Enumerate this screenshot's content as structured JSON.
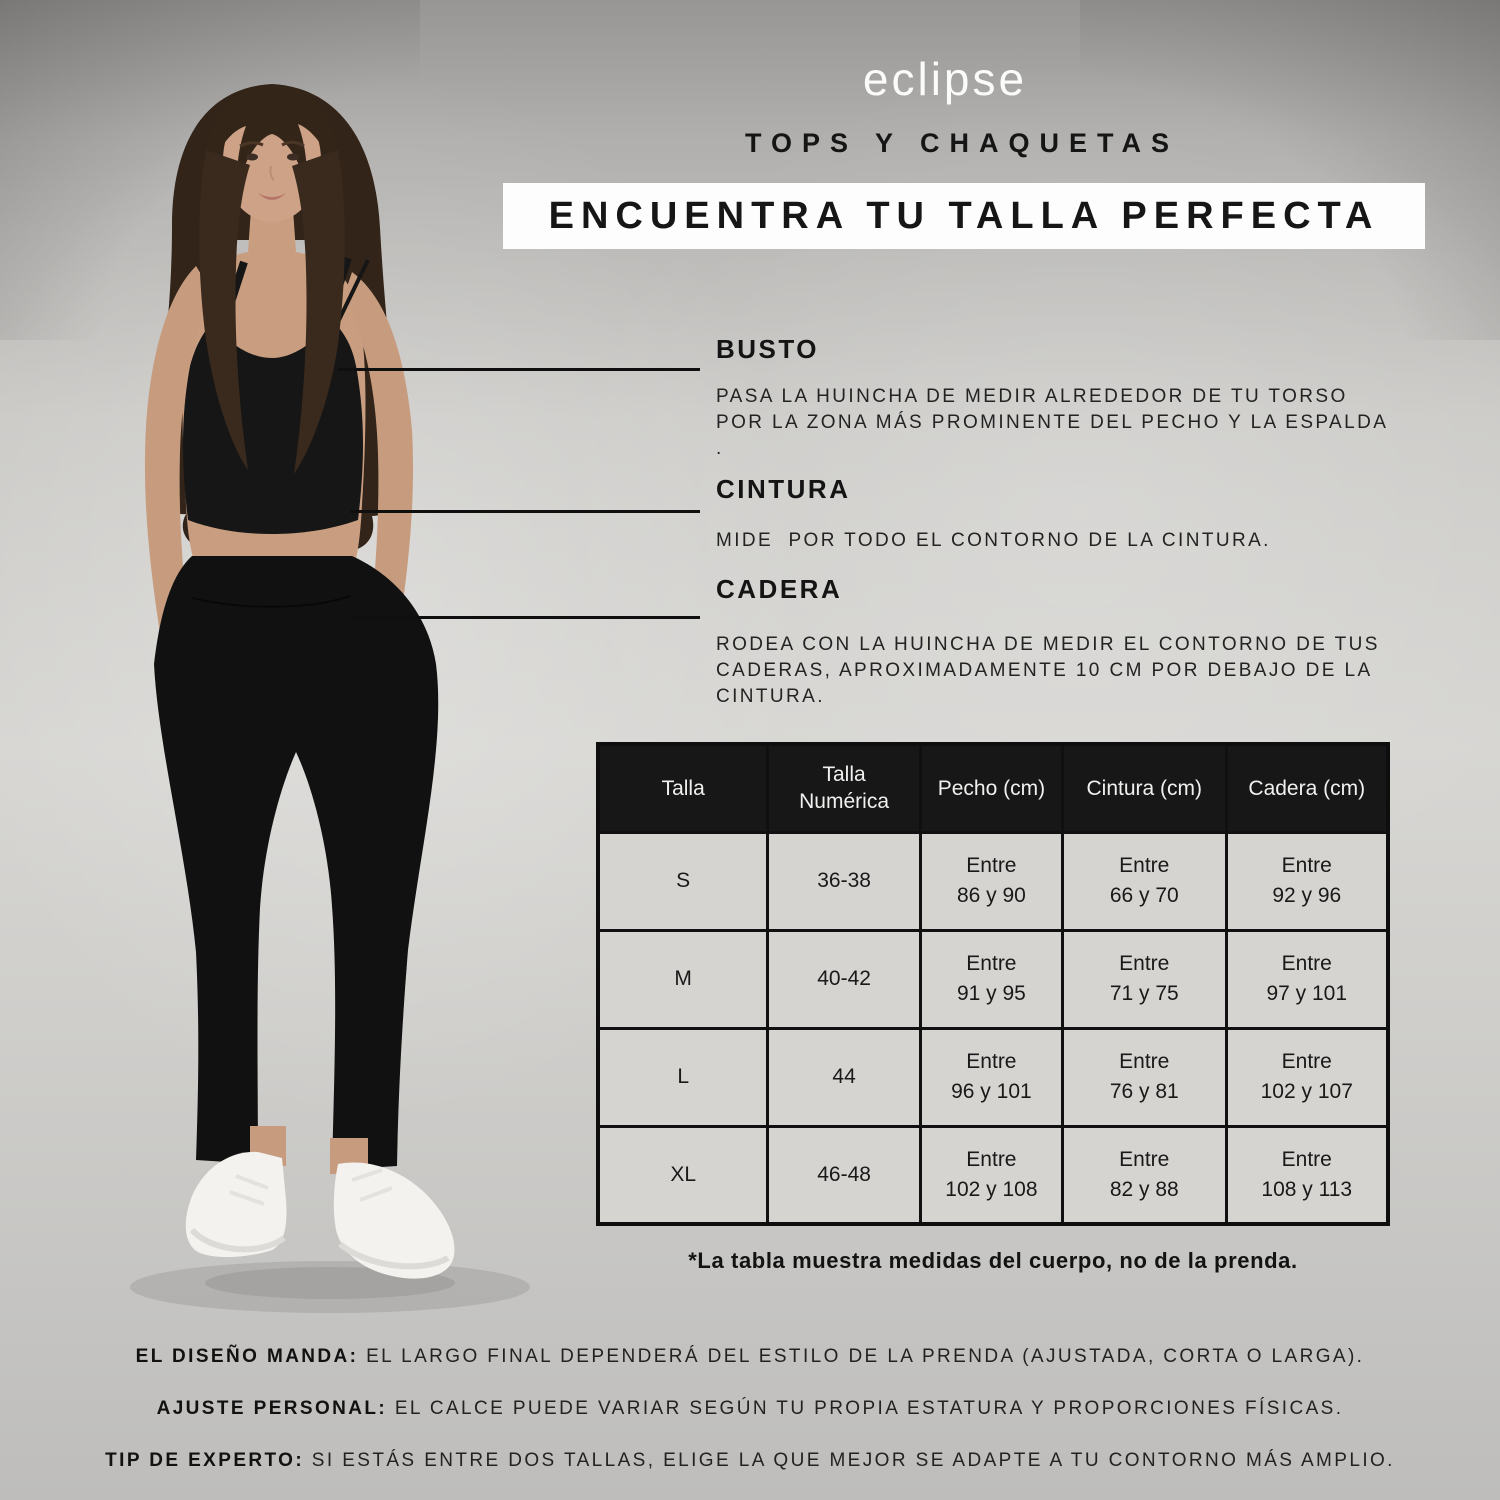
{
  "brand": {
    "logo_text": "eclipse"
  },
  "header": {
    "category": "TOPS Y CHAQUETAS",
    "title": "ENCUENTRA TU TALLA PERFECTA"
  },
  "measurements": [
    {
      "name": "BUSTO",
      "description": "PASA LA HUINCHA DE MEDIR ALREDEDOR DE TU TORSO\nPOR LA ZONA MÁS PROMINENTE DEL PECHO Y LA ESPALDA\n."
    },
    {
      "name": "CINTURA",
      "description": "MIDE  POR TODO EL CONTORNO DE LA CINTURA."
    },
    {
      "name": "CADERA",
      "description": "RODEA CON LA HUINCHA DE MEDIR EL CONTORNO DE TUS\nCADERAS, APROXIMADAMENTE 10 CM POR DEBAJO DE LA\nCINTURA."
    }
  ],
  "size_table": {
    "headers": [
      "Talla",
      "Talla\nNumérica",
      "Pecho (cm)",
      "Cintura (cm)",
      "Cadera (cm)"
    ],
    "rows": [
      [
        "S",
        "36-38",
        "Entre\n86 y 90",
        "Entre\n66 y 70",
        "Entre\n92 y 96"
      ],
      [
        "M",
        "40-42",
        "Entre\n91 y 95",
        "Entre\n71 y 75",
        "Entre\n97 y 101"
      ],
      [
        "L",
        "44",
        "Entre\n96 y 101",
        "Entre\n76 y 81",
        "Entre\n102 y 107"
      ],
      [
        "XL",
        "46-48",
        "Entre\n102 y 108",
        "Entre\n82 y 88",
        "Entre\n108 y 113"
      ]
    ],
    "footnote": "*La tabla muestra medidas del cuerpo, no de la prenda."
  },
  "footer_notes": [
    {
      "label": "EL DISEÑO MANDA:",
      "text": "EL LARGO FINAL DEPENDERÁ DEL ESTILO DE LA PRENDA (AJUSTADA, CORTA O LARGA)."
    },
    {
      "label": "AJUSTE PERSONAL:",
      "text": "EL CALCE PUEDE VARIAR SEGÚN TU PROPIA ESTATURA Y PROPORCIONES FÍSICAS."
    },
    {
      "label": "TIP DE EXPERTO:",
      "text": "SI ESTÁS ENTRE DOS TALLAS, ELIGE LA QUE MEJOR SE ADAPTE A TU CONTORNO MÁS AMPLIO."
    }
  ],
  "colors": {
    "text_black": "#141414",
    "banner_white": "#fdfdfd",
    "table_header_bg": "#171717",
    "table_cell_bg": "#d5d4d1",
    "backdrop_gray": "#cfcecb"
  }
}
